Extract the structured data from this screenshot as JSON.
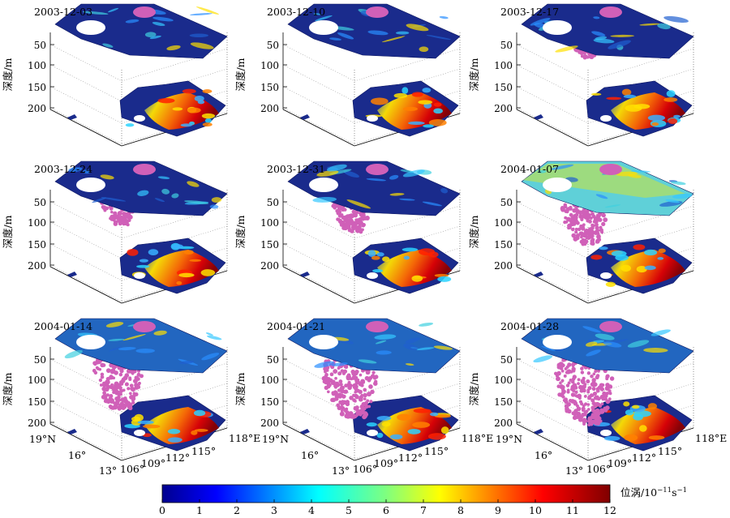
{
  "chart_data": {
    "type": "3d-slices",
    "panels": [
      {
        "date": "2003-12-03",
        "plume_depth": 0
      },
      {
        "date": "2003-12-10",
        "plume_depth": 0
      },
      {
        "date": "2003-12-17",
        "plume_depth": 65
      },
      {
        "date": "2003-12-24",
        "plume_depth": 90
      },
      {
        "date": "2003-12-31",
        "plume_depth": 110
      },
      {
        "date": "2004-01-07",
        "plume_depth": 140
      },
      {
        "date": "2004-01-14",
        "plume_depth": 160
      },
      {
        "date": "2004-01-21",
        "plume_depth": 180
      },
      {
        "date": "2004-01-28",
        "plume_depth": 200
      }
    ],
    "z_axis": {
      "label": "深度/m",
      "ticks": [
        "50",
        "100",
        "150",
        "200"
      ]
    },
    "lat_ticks": [
      "19°N",
      "16°",
      "13°"
    ],
    "lon_ticks": [
      "106°",
      "109°",
      "112°",
      "115°",
      "118°E"
    ],
    "colorbar": {
      "label_main": "位涡/10",
      "label_exp1": "−11",
      "label_unit": "s",
      "label_exp2": "−1",
      "min": 0,
      "max": 12,
      "ticks": [
        "0",
        "1",
        "2",
        "3",
        "4",
        "5",
        "6",
        "7",
        "8",
        "9",
        "10",
        "11",
        "12"
      ]
    },
    "colors": {
      "low": "#1a2b8c",
      "plume": "#d060b8",
      "land": "#ffffff"
    }
  }
}
